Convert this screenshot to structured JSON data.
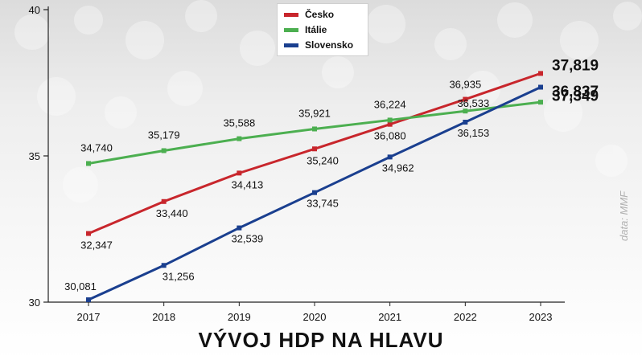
{
  "chart_data": {
    "type": "line",
    "title": "VÝVOJ HDP NA HLAVU",
    "source": "data: MMF",
    "x": [
      "2017",
      "2018",
      "2019",
      "2020",
      "2021",
      "2022",
      "2023"
    ],
    "ylim": [
      30,
      40
    ],
    "yticks": [
      30,
      35,
      40
    ],
    "grid": false,
    "legend_position": "top-center",
    "series": [
      {
        "name": "Česko",
        "color": "#c8262c",
        "values": [
          32.347,
          33.44,
          34.413,
          35.24,
          36.08,
          36.935,
          37.819
        ],
        "labels": [
          "32,347",
          "33,440",
          "34,413",
          "35,240",
          "36,080",
          "36,935",
          "37,819"
        ]
      },
      {
        "name": "Itálie",
        "color": "#4caf50",
        "values": [
          34.74,
          35.179,
          35.588,
          35.921,
          36.224,
          36.533,
          36.837
        ],
        "labels": [
          "34,740",
          "35,179",
          "35,588",
          "35,921",
          "36,224",
          "36,533",
          "36,837"
        ]
      },
      {
        "name": "Slovensko",
        "color": "#1a3f8f",
        "values": [
          30.081,
          31.256,
          32.539,
          33.745,
          34.962,
          36.153,
          37.349
        ],
        "labels": [
          "30,081",
          "31,256",
          "32,539",
          "33,745",
          "34,962",
          "36,153",
          "37,349"
        ]
      }
    ]
  }
}
